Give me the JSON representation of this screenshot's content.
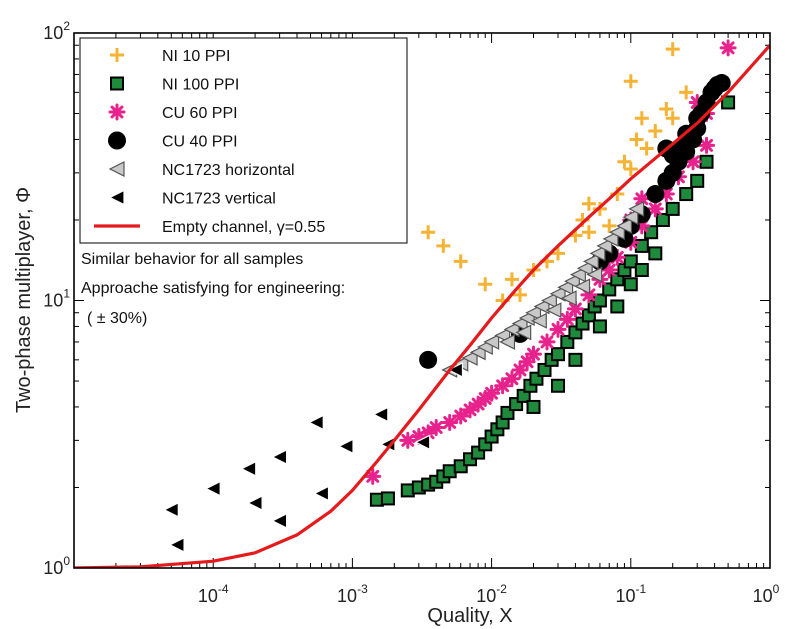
{
  "chart_data": {
    "type": "scatter",
    "xlabel": "Quality, X",
    "ylabel": "Two-phase multiplayer, Φ",
    "xscale": "log",
    "yscale": "log",
    "xlim": [
      1e-05,
      1
    ],
    "ylim": [
      1,
      100
    ],
    "grid": false,
    "legend_position": "top-left",
    "x_tick_labels": [
      {
        "base": "10",
        "exp": "-4",
        "value": 0.0001
      },
      {
        "base": "10",
        "exp": "-3",
        "value": 0.001
      },
      {
        "base": "10",
        "exp": "-2",
        "value": 0.01
      },
      {
        "base": "10",
        "exp": "-1",
        "value": 0.1
      },
      {
        "base": "10",
        "exp": "0",
        "value": 1
      }
    ],
    "y_tick_labels": [
      {
        "base": "10",
        "exp": "0",
        "value": 1
      },
      {
        "base": "10",
        "exp": "1",
        "value": 10
      },
      {
        "base": "10",
        "exp": "2",
        "value": 100
      }
    ],
    "annotations": [
      "Similar behavior for all samples",
      "Approache satisfying for engineering:",
      "( ± 30%)"
    ],
    "series": [
      {
        "name": "NI 10 PPI",
        "marker": "plus",
        "color": "#f5b335",
        "points": [
          [
            0.0035,
            18
          ],
          [
            0.0045,
            16
          ],
          [
            0.006,
            14
          ],
          [
            0.009,
            11.5
          ],
          [
            0.012,
            10
          ],
          [
            0.014,
            12
          ],
          [
            0.016,
            10.5
          ],
          [
            0.02,
            13
          ],
          [
            0.025,
            14
          ],
          [
            0.03,
            15
          ],
          [
            0.04,
            17.5
          ],
          [
            0.05,
            18
          ],
          [
            0.06,
            22
          ],
          [
            0.07,
            19
          ],
          [
            0.08,
            25
          ],
          [
            0.09,
            33
          ],
          [
            0.1,
            31
          ],
          [
            0.11,
            40
          ],
          [
            0.13,
            37
          ],
          [
            0.15,
            43
          ],
          [
            0.18,
            52
          ],
          [
            0.2,
            48
          ],
          [
            0.25,
            60
          ],
          [
            0.12,
            48
          ],
          [
            0.1,
            66
          ],
          [
            0.2,
            87
          ],
          [
            0.05,
            23
          ],
          [
            0.045,
            20
          ]
        ]
      },
      {
        "name": "NI 100 PPI",
        "marker": "square",
        "color": "#1f8a3b",
        "points": [
          [
            0.0015,
            1.8
          ],
          [
            0.0018,
            1.82
          ],
          [
            0.0025,
            1.95
          ],
          [
            0.003,
            2.0
          ],
          [
            0.0035,
            2.05
          ],
          [
            0.004,
            2.1
          ],
          [
            0.0045,
            2.2
          ],
          [
            0.005,
            2.3
          ],
          [
            0.006,
            2.4
          ],
          [
            0.007,
            2.55
          ],
          [
            0.008,
            2.7
          ],
          [
            0.009,
            2.9
          ],
          [
            0.01,
            3.1
          ],
          [
            0.011,
            3.3
          ],
          [
            0.012,
            3.5
          ],
          [
            0.013,
            3.8
          ],
          [
            0.015,
            4.1
          ],
          [
            0.017,
            4.4
          ],
          [
            0.019,
            4.8
          ],
          [
            0.021,
            5.1
          ],
          [
            0.024,
            5.5
          ],
          [
            0.027,
            6.0
          ],
          [
            0.03,
            6.3
          ],
          [
            0.035,
            7.0
          ],
          [
            0.04,
            7.6
          ],
          [
            0.045,
            8.2
          ],
          [
            0.05,
            8.8
          ],
          [
            0.055,
            9.5
          ],
          [
            0.06,
            10.0
          ],
          [
            0.07,
            11.0
          ],
          [
            0.08,
            12.0
          ],
          [
            0.09,
            13.0
          ],
          [
            0.1,
            14.0
          ],
          [
            0.12,
            16.0
          ],
          [
            0.14,
            18.0
          ],
          [
            0.17,
            20.0
          ],
          [
            0.2,
            22.0
          ],
          [
            0.25,
            25.0
          ],
          [
            0.3,
            28.0
          ],
          [
            0.35,
            33.0
          ],
          [
            0.5,
            55.0
          ],
          [
            0.03,
            4.8
          ],
          [
            0.04,
            6.0
          ],
          [
            0.06,
            8.0
          ],
          [
            0.08,
            9.5
          ],
          [
            0.1,
            11.5
          ],
          [
            0.12,
            13.0
          ],
          [
            0.15,
            15.0
          ],
          [
            0.02,
            4.0
          ]
        ]
      },
      {
        "name": "CU 60 PPI",
        "marker": "star",
        "color": "#e8228c",
        "points": [
          [
            0.0014,
            2.2
          ],
          [
            0.0025,
            3.0
          ],
          [
            0.003,
            3.1
          ],
          [
            0.0035,
            3.2
          ],
          [
            0.004,
            3.35
          ],
          [
            0.005,
            3.5
          ],
          [
            0.006,
            3.7
          ],
          [
            0.007,
            3.9
          ],
          [
            0.008,
            4.1
          ],
          [
            0.009,
            4.3
          ],
          [
            0.01,
            4.5
          ],
          [
            0.012,
            4.8
          ],
          [
            0.014,
            5.1
          ],
          [
            0.016,
            5.5
          ],
          [
            0.018,
            5.9
          ],
          [
            0.02,
            6.3
          ],
          [
            0.025,
            7.0
          ],
          [
            0.03,
            7.8
          ],
          [
            0.035,
            8.5
          ],
          [
            0.04,
            9.3
          ],
          [
            0.05,
            10.5
          ],
          [
            0.06,
            12.0
          ],
          [
            0.07,
            13.0
          ],
          [
            0.08,
            14.5
          ],
          [
            0.1,
            16.5
          ],
          [
            0.12,
            19.0
          ],
          [
            0.15,
            22.0
          ],
          [
            0.18,
            25.0
          ],
          [
            0.22,
            29.0
          ],
          [
            0.28,
            33.0
          ],
          [
            0.35,
            38.0
          ],
          [
            0.5,
            88.0
          ],
          [
            0.2,
            35.0
          ],
          [
            0.25,
            38.0
          ],
          [
            0.3,
            55.0
          ],
          [
            0.35,
            50.0
          ],
          [
            0.1,
            20.0
          ],
          [
            0.12,
            24.0
          ]
        ]
      },
      {
        "name": "CU 40 PPI",
        "marker": "circle",
        "color": "#000000",
        "points": [
          [
            0.0035,
            6.0
          ],
          [
            0.016,
            7.5
          ],
          [
            0.06,
            14.0
          ],
          [
            0.07,
            15.0
          ],
          [
            0.09,
            17.0
          ],
          [
            0.1,
            19.0
          ],
          [
            0.12,
            21.0
          ],
          [
            0.15,
            25.0
          ],
          [
            0.18,
            28.0
          ],
          [
            0.2,
            30.0
          ],
          [
            0.22,
            33.0
          ],
          [
            0.25,
            36.0
          ],
          [
            0.28,
            40.0
          ],
          [
            0.3,
            44.0
          ],
          [
            0.32,
            50.0
          ],
          [
            0.35,
            55.0
          ],
          [
            0.38,
            60.0
          ],
          [
            0.4,
            62.0
          ],
          [
            0.42,
            64.0
          ],
          [
            0.45,
            65.0
          ],
          [
            0.18,
            37.0
          ],
          [
            0.2,
            35.0
          ],
          [
            0.22,
            37.0
          ],
          [
            0.25,
            42.0
          ],
          [
            0.3,
            48.0
          ]
        ]
      },
      {
        "name": "NC1723 horizontal",
        "marker": "triangle-left",
        "color": "#c8c8c8",
        "points": [
          [
            0.005,
            5.5
          ],
          [
            0.006,
            5.8
          ],
          [
            0.007,
            6.1
          ],
          [
            0.008,
            6.4
          ],
          [
            0.009,
            6.7
          ],
          [
            0.01,
            7.0
          ],
          [
            0.012,
            7.4
          ],
          [
            0.014,
            7.8
          ],
          [
            0.016,
            8.2
          ],
          [
            0.018,
            8.6
          ],
          [
            0.02,
            9.0
          ],
          [
            0.023,
            9.5
          ],
          [
            0.026,
            10.0
          ],
          [
            0.03,
            10.6
          ],
          [
            0.034,
            11.2
          ],
          [
            0.038,
            11.8
          ],
          [
            0.042,
            12.5
          ],
          [
            0.047,
            13.2
          ],
          [
            0.052,
            14.0
          ],
          [
            0.058,
            15.0
          ],
          [
            0.065,
            16.0
          ],
          [
            0.072,
            17.0
          ],
          [
            0.08,
            18.0
          ],
          [
            0.09,
            19.0
          ],
          [
            0.1,
            20.5
          ],
          [
            0.11,
            22.0
          ],
          [
            0.013,
            7.0
          ],
          [
            0.017,
            7.6
          ],
          [
            0.022,
            8.4
          ],
          [
            0.028,
            9.2
          ],
          [
            0.036,
            10.2
          ],
          [
            0.045,
            11.3
          ],
          [
            0.055,
            12.5
          ]
        ]
      },
      {
        "name": "NC1723 vertical",
        "marker": "triangle-left",
        "color": "#000000",
        "points": [
          [
            5e-05,
            1.65
          ],
          [
            5.5e-05,
            1.22
          ],
          [
            0.0001,
            1.98
          ],
          [
            0.00018,
            2.35
          ],
          [
            0.0002,
            1.75
          ],
          [
            0.0003,
            2.6
          ],
          [
            0.0003,
            1.5
          ],
          [
            0.00055,
            3.5
          ],
          [
            0.0006,
            1.9
          ],
          [
            0.0009,
            2.85
          ],
          [
            0.0016,
            3.75
          ],
          [
            0.0018,
            2.9
          ],
          [
            0.0032,
            2.95
          ],
          [
            0.0055,
            5.5
          ]
        ]
      },
      {
        "name": "Empty channel, γ=0.55",
        "marker": "line",
        "color": "#e41a1c",
        "points": [
          [
            1e-05,
            1.0
          ],
          [
            3e-05,
            1.01
          ],
          [
            0.0001,
            1.06
          ],
          [
            0.0002,
            1.14
          ],
          [
            0.0004,
            1.33
          ],
          [
            0.0007,
            1.63
          ],
          [
            0.001,
            1.95
          ],
          [
            0.0015,
            2.5
          ],
          [
            0.002,
            3.0
          ],
          [
            0.003,
            3.9
          ],
          [
            0.005,
            5.5
          ],
          [
            0.007,
            6.8
          ],
          [
            0.01,
            8.6
          ],
          [
            0.015,
            11.0
          ],
          [
            0.02,
            13.0
          ],
          [
            0.03,
            16.0
          ],
          [
            0.05,
            20.5
          ],
          [
            0.07,
            24.0
          ],
          [
            0.1,
            28.5
          ],
          [
            0.15,
            34.0
          ],
          [
            0.2,
            38.5
          ],
          [
            0.3,
            46.0
          ],
          [
            0.5,
            60.0
          ],
          [
            0.7,
            73.0
          ],
          [
            1.0,
            90.0
          ]
        ]
      }
    ]
  }
}
